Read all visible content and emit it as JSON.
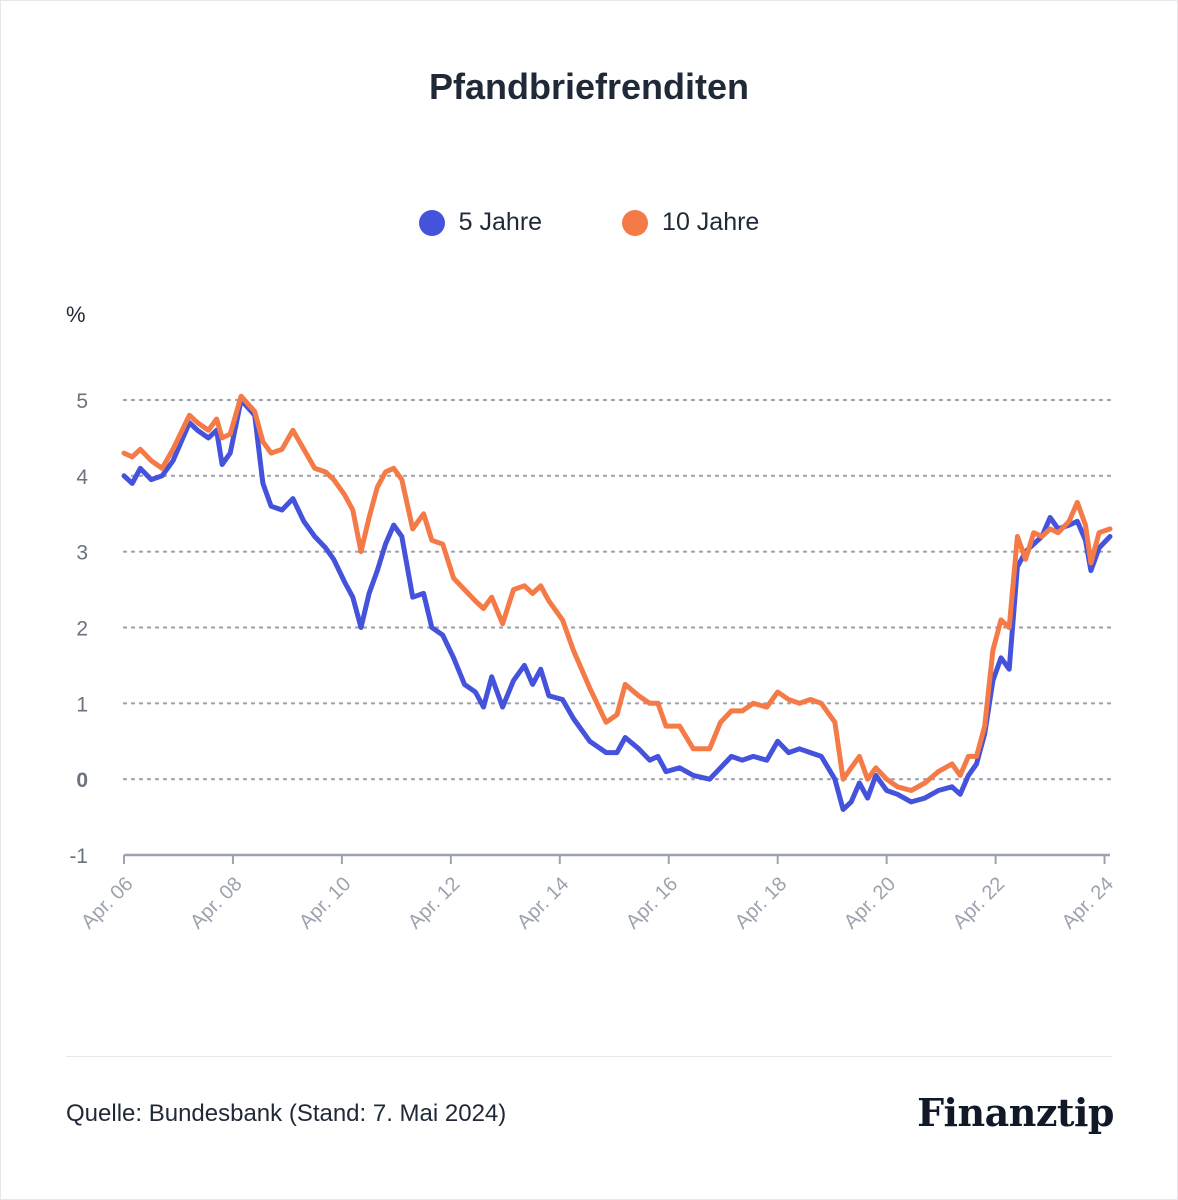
{
  "header": {
    "title": "Pfandbriefrenditen"
  },
  "legend": [
    {
      "label": "5 Jahre",
      "color": "#4452dc"
    },
    {
      "label": "10 Jahre",
      "color": "#f47a47"
    }
  ],
  "footer": {
    "source": "Quelle: Bundesbank (Stand: 7. Mai 2024)",
    "logo": "Finanztip"
  },
  "chart_data": {
    "type": "line",
    "title": "Pfandbriefrenditen",
    "ylabel": "%",
    "xlabel": "",
    "ylim": [
      -1,
      5
    ],
    "xlim": [
      2006.25,
      2024.35
    ],
    "yticks": [
      {
        "value": 5,
        "label": "5"
      },
      {
        "value": 4,
        "label": "4"
      },
      {
        "value": 3,
        "label": "3"
      },
      {
        "value": 2,
        "label": "2"
      },
      {
        "value": 1,
        "label": "1"
      },
      {
        "value": 0,
        "label": "0"
      },
      {
        "value": -1,
        "label": "-1"
      }
    ],
    "xticks": [
      {
        "value": 2006.25,
        "label": "Apr. 06"
      },
      {
        "value": 2008.25,
        "label": "Apr. 08"
      },
      {
        "value": 2010.25,
        "label": "Apr. 10"
      },
      {
        "value": 2012.25,
        "label": "Apr. 12"
      },
      {
        "value": 2014.25,
        "label": "Apr. 14"
      },
      {
        "value": 2016.25,
        "label": "Apr. 16"
      },
      {
        "value": 2018.25,
        "label": "Apr. 18"
      },
      {
        "value": 2020.25,
        "label": "Apr. 20"
      },
      {
        "value": 2022.25,
        "label": "Apr. 22"
      },
      {
        "value": 2024.25,
        "label": "Apr. 24"
      }
    ],
    "grid": "dotted horizontal",
    "legend_position": "top",
    "series": [
      {
        "name": "5 Jahre",
        "color": "#4452dc",
        "points": [
          [
            2006.25,
            4.0
          ],
          [
            2006.4,
            3.9
          ],
          [
            2006.55,
            4.1
          ],
          [
            2006.75,
            3.95
          ],
          [
            2006.95,
            4.0
          ],
          [
            2007.15,
            4.2
          ],
          [
            2007.45,
            4.7
          ],
          [
            2007.6,
            4.6
          ],
          [
            2007.8,
            4.5
          ],
          [
            2007.95,
            4.6
          ],
          [
            2008.05,
            4.15
          ],
          [
            2008.2,
            4.3
          ],
          [
            2008.4,
            5.0
          ],
          [
            2008.65,
            4.8
          ],
          [
            2008.8,
            3.9
          ],
          [
            2008.95,
            3.6
          ],
          [
            2009.15,
            3.55
          ],
          [
            2009.35,
            3.7
          ],
          [
            2009.55,
            3.4
          ],
          [
            2009.75,
            3.2
          ],
          [
            2009.95,
            3.05
          ],
          [
            2010.1,
            2.9
          ],
          [
            2010.3,
            2.6
          ],
          [
            2010.45,
            2.4
          ],
          [
            2010.6,
            2.0
          ],
          [
            2010.75,
            2.45
          ],
          [
            2010.9,
            2.75
          ],
          [
            2011.05,
            3.1
          ],
          [
            2011.2,
            3.35
          ],
          [
            2011.35,
            3.2
          ],
          [
            2011.55,
            2.4
          ],
          [
            2011.75,
            2.45
          ],
          [
            2011.9,
            2.0
          ],
          [
            2012.1,
            1.9
          ],
          [
            2012.3,
            1.6
          ],
          [
            2012.5,
            1.25
          ],
          [
            2012.7,
            1.15
          ],
          [
            2012.85,
            0.95
          ],
          [
            2013.0,
            1.35
          ],
          [
            2013.2,
            0.95
          ],
          [
            2013.4,
            1.3
          ],
          [
            2013.6,
            1.5
          ],
          [
            2013.75,
            1.25
          ],
          [
            2013.9,
            1.45
          ],
          [
            2014.05,
            1.1
          ],
          [
            2014.3,
            1.05
          ],
          [
            2014.5,
            0.8
          ],
          [
            2014.8,
            0.5
          ],
          [
            2015.1,
            0.35
          ],
          [
            2015.3,
            0.35
          ],
          [
            2015.45,
            0.55
          ],
          [
            2015.7,
            0.4
          ],
          [
            2015.9,
            0.25
          ],
          [
            2016.05,
            0.3
          ],
          [
            2016.2,
            0.1
          ],
          [
            2016.45,
            0.15
          ],
          [
            2016.7,
            0.05
          ],
          [
            2017.0,
            0.0
          ],
          [
            2017.2,
            0.15
          ],
          [
            2017.4,
            0.3
          ],
          [
            2017.6,
            0.25
          ],
          [
            2017.8,
            0.3
          ],
          [
            2018.05,
            0.25
          ],
          [
            2018.25,
            0.5
          ],
          [
            2018.45,
            0.35
          ],
          [
            2018.65,
            0.4
          ],
          [
            2018.85,
            0.35
          ],
          [
            2019.05,
            0.3
          ],
          [
            2019.3,
            0.0
          ],
          [
            2019.45,
            -0.4
          ],
          [
            2019.6,
            -0.3
          ],
          [
            2019.75,
            -0.05
          ],
          [
            2019.9,
            -0.25
          ],
          [
            2020.05,
            0.05
          ],
          [
            2020.25,
            -0.15
          ],
          [
            2020.45,
            -0.2
          ],
          [
            2020.7,
            -0.3
          ],
          [
            2020.95,
            -0.25
          ],
          [
            2021.2,
            -0.15
          ],
          [
            2021.45,
            -0.1
          ],
          [
            2021.6,
            -0.2
          ],
          [
            2021.75,
            0.05
          ],
          [
            2021.9,
            0.2
          ],
          [
            2022.05,
            0.6
          ],
          [
            2022.2,
            1.3
          ],
          [
            2022.35,
            1.6
          ],
          [
            2022.5,
            1.45
          ],
          [
            2022.65,
            2.8
          ],
          [
            2022.8,
            3.0
          ],
          [
            2022.95,
            3.1
          ],
          [
            2023.1,
            3.2
          ],
          [
            2023.25,
            3.45
          ],
          [
            2023.4,
            3.3
          ],
          [
            2023.6,
            3.35
          ],
          [
            2023.75,
            3.4
          ],
          [
            2023.9,
            3.15
          ],
          [
            2024.0,
            2.75
          ],
          [
            2024.15,
            3.05
          ],
          [
            2024.35,
            3.2
          ]
        ]
      },
      {
        "name": "10 Jahre",
        "color": "#f47a47",
        "points": [
          [
            2006.25,
            4.3
          ],
          [
            2006.4,
            4.25
          ],
          [
            2006.55,
            4.35
          ],
          [
            2006.75,
            4.2
          ],
          [
            2006.95,
            4.1
          ],
          [
            2007.15,
            4.35
          ],
          [
            2007.45,
            4.8
          ],
          [
            2007.6,
            4.7
          ],
          [
            2007.8,
            4.6
          ],
          [
            2007.95,
            4.75
          ],
          [
            2008.05,
            4.5
          ],
          [
            2008.2,
            4.55
          ],
          [
            2008.4,
            5.05
          ],
          [
            2008.65,
            4.85
          ],
          [
            2008.8,
            4.45
          ],
          [
            2008.95,
            4.3
          ],
          [
            2009.15,
            4.35
          ],
          [
            2009.35,
            4.6
          ],
          [
            2009.55,
            4.35
          ],
          [
            2009.75,
            4.1
          ],
          [
            2009.95,
            4.05
          ],
          [
            2010.1,
            3.95
          ],
          [
            2010.3,
            3.75
          ],
          [
            2010.45,
            3.55
          ],
          [
            2010.6,
            3.0
          ],
          [
            2010.75,
            3.45
          ],
          [
            2010.9,
            3.85
          ],
          [
            2011.05,
            4.05
          ],
          [
            2011.2,
            4.1
          ],
          [
            2011.35,
            3.95
          ],
          [
            2011.55,
            3.3
          ],
          [
            2011.75,
            3.5
          ],
          [
            2011.9,
            3.15
          ],
          [
            2012.1,
            3.1
          ],
          [
            2012.3,
            2.65
          ],
          [
            2012.5,
            2.5
          ],
          [
            2012.7,
            2.35
          ],
          [
            2012.85,
            2.25
          ],
          [
            2013.0,
            2.4
          ],
          [
            2013.2,
            2.05
          ],
          [
            2013.4,
            2.5
          ],
          [
            2013.6,
            2.55
          ],
          [
            2013.75,
            2.45
          ],
          [
            2013.9,
            2.55
          ],
          [
            2014.05,
            2.35
          ],
          [
            2014.3,
            2.1
          ],
          [
            2014.5,
            1.7
          ],
          [
            2014.8,
            1.2
          ],
          [
            2015.1,
            0.75
          ],
          [
            2015.3,
            0.85
          ],
          [
            2015.45,
            1.25
          ],
          [
            2015.7,
            1.1
          ],
          [
            2015.9,
            1.0
          ],
          [
            2016.05,
            1.0
          ],
          [
            2016.2,
            0.7
          ],
          [
            2016.45,
            0.7
          ],
          [
            2016.7,
            0.4
          ],
          [
            2017.0,
            0.4
          ],
          [
            2017.2,
            0.75
          ],
          [
            2017.4,
            0.9
          ],
          [
            2017.6,
            0.9
          ],
          [
            2017.8,
            1.0
          ],
          [
            2018.05,
            0.95
          ],
          [
            2018.25,
            1.15
          ],
          [
            2018.45,
            1.05
          ],
          [
            2018.65,
            1.0
          ],
          [
            2018.85,
            1.05
          ],
          [
            2019.05,
            1.0
          ],
          [
            2019.3,
            0.75
          ],
          [
            2019.45,
            0.0
          ],
          [
            2019.6,
            0.15
          ],
          [
            2019.75,
            0.3
          ],
          [
            2019.9,
            0.0
          ],
          [
            2020.05,
            0.15
          ],
          [
            2020.25,
            0.0
          ],
          [
            2020.45,
            -0.1
          ],
          [
            2020.7,
            -0.15
          ],
          [
            2020.95,
            -0.05
          ],
          [
            2021.2,
            0.1
          ],
          [
            2021.45,
            0.2
          ],
          [
            2021.6,
            0.05
          ],
          [
            2021.75,
            0.3
          ],
          [
            2021.9,
            0.3
          ],
          [
            2022.05,
            0.7
          ],
          [
            2022.2,
            1.7
          ],
          [
            2022.35,
            2.1
          ],
          [
            2022.5,
            2.0
          ],
          [
            2022.65,
            3.2
          ],
          [
            2022.8,
            2.9
          ],
          [
            2022.95,
            3.25
          ],
          [
            2023.1,
            3.2
          ],
          [
            2023.25,
            3.3
          ],
          [
            2023.4,
            3.25
          ],
          [
            2023.6,
            3.4
          ],
          [
            2023.75,
            3.65
          ],
          [
            2023.9,
            3.35
          ],
          [
            2024.0,
            2.85
          ],
          [
            2024.15,
            3.25
          ],
          [
            2024.35,
            3.3
          ]
        ]
      }
    ]
  }
}
